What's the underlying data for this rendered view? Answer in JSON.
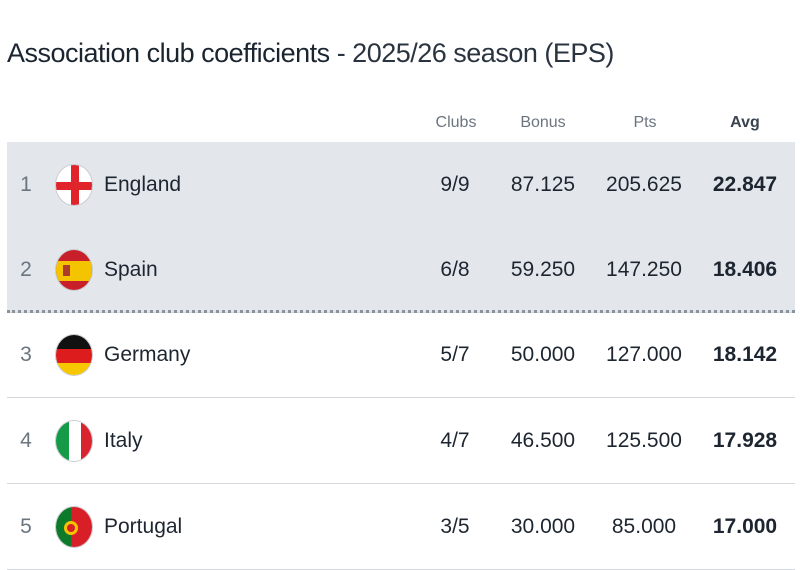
{
  "title": {
    "main": "Association club coefficients",
    "sub": " - 2025/26 season (EPS)"
  },
  "columns": {
    "clubs": "Clubs",
    "bonus": "Bonus",
    "pts": "Pts",
    "avg": "Avg"
  },
  "rows": [
    {
      "rank": "1",
      "country": "England",
      "flag": "england-flag-icon",
      "clubs": "9/9",
      "bonus": "87.125",
      "pts": "205.625",
      "avg": "22.847",
      "highlighted": true
    },
    {
      "rank": "2",
      "country": "Spain",
      "flag": "spain-flag-icon",
      "clubs": "6/8",
      "bonus": "59.250",
      "pts": "147.250",
      "avg": "18.406",
      "highlighted": true
    },
    {
      "rank": "3",
      "country": "Germany",
      "flag": "germany-flag-icon",
      "clubs": "5/7",
      "bonus": "50.000",
      "pts": "127.000",
      "avg": "18.142",
      "highlighted": false
    },
    {
      "rank": "4",
      "country": "Italy",
      "flag": "italy-flag-icon",
      "clubs": "4/7",
      "bonus": "46.500",
      "pts": "125.500",
      "avg": "17.928",
      "highlighted": false
    },
    {
      "rank": "5",
      "country": "Portugal",
      "flag": "portugal-flag-icon",
      "clubs": "3/5",
      "bonus": "30.000",
      "pts": "85.000",
      "avg": "17.000",
      "highlighted": false
    }
  ],
  "colors": {
    "highlight": "#e3e6ea",
    "text": "#1d2630"
  }
}
